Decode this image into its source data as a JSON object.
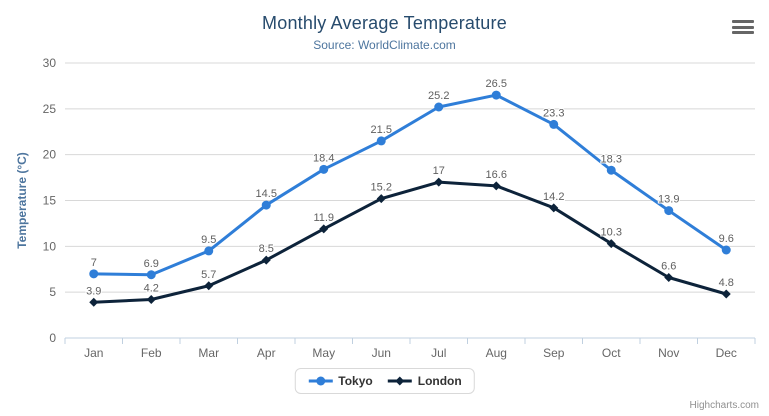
{
  "header": {
    "menu_icon": "hamburger-icon"
  },
  "credits": {
    "label": "Highcharts.com"
  },
  "colors": {
    "title": "#274b6d",
    "subtitle": "#4d759e",
    "grid_line": "#d8d8d8",
    "axis_line": "#c0d0e0",
    "axis_label": "#666666",
    "y_axis_title": "#4d759e",
    "data_label": "#606060",
    "legend_text": "#333333",
    "legend_border": "#d9d9d9",
    "credits_text": "#909090",
    "menu_icon": "#666666"
  },
  "chart_data": {
    "type": "line",
    "title": "Monthly Average Temperature",
    "subtitle": "Source: WorldClimate.com",
    "categories": [
      "Jan",
      "Feb",
      "Mar",
      "Apr",
      "May",
      "Jun",
      "Jul",
      "Aug",
      "Sep",
      "Oct",
      "Nov",
      "Dec"
    ],
    "series": [
      {
        "name": "Tokyo",
        "color": "#2f7ed8",
        "marker": "circle",
        "values": [
          7,
          6.9,
          9.5,
          14.5,
          18.4,
          21.5,
          25.2,
          26.5,
          23.3,
          18.3,
          13.9,
          9.6
        ],
        "labels": [
          "7",
          "6.9",
          "9.5",
          "14.5",
          "18.4",
          "21.5",
          "25.2",
          "26.5",
          "23.3",
          "18.3",
          "13.9",
          "9.6"
        ]
      },
      {
        "name": "London",
        "color": "#0d233a",
        "marker": "diamond",
        "values": [
          3.9,
          4.2,
          5.7,
          8.5,
          11.9,
          15.2,
          17,
          16.6,
          14.2,
          10.3,
          6.6,
          4.8
        ],
        "labels": [
          "3.9",
          "4.2",
          "5.7",
          "8.5",
          "11.9",
          "15.2",
          "17",
          "16.6",
          "14.2",
          "10.3",
          "6.6",
          "4.8"
        ]
      }
    ],
    "xlabel": "",
    "ylabel": "Temperature (°C)",
    "ylim": [
      0,
      30
    ],
    "yticks": [
      0,
      5,
      10,
      15,
      20,
      25,
      30
    ],
    "grid": true,
    "legend_position": "bottom"
  }
}
